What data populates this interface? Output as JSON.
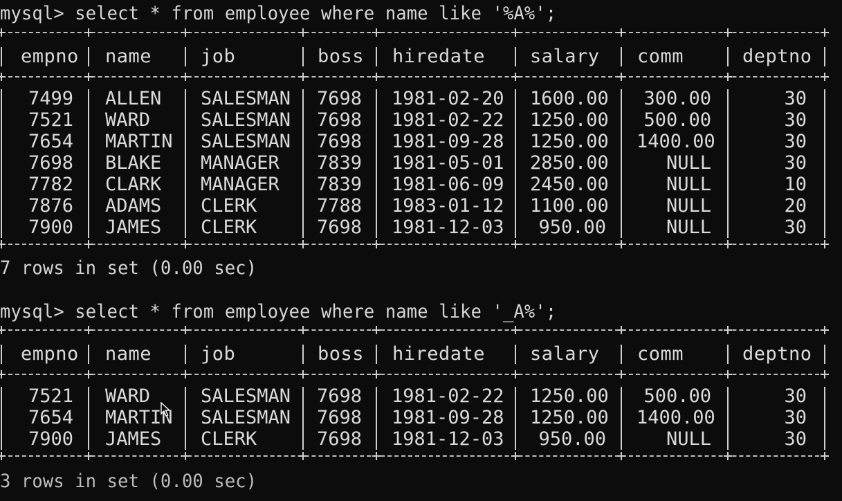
{
  "queries": [
    {
      "prompt": "mysql> select * from employee where name like '%A%';",
      "columns": [
        "empno",
        "name",
        "job",
        "boss",
        "hiredate",
        "salary",
        "comm",
        "deptno"
      ],
      "rows": [
        [
          "7499",
          "ALLEN",
          "SALESMAN",
          "7698",
          "1981-02-20",
          "1600.00",
          "300.00",
          "30"
        ],
        [
          "7521",
          "WARD",
          "SALESMAN",
          "7698",
          "1981-02-22",
          "1250.00",
          "500.00",
          "30"
        ],
        [
          "7654",
          "MARTIN",
          "SALESMAN",
          "7698",
          "1981-09-28",
          "1250.00",
          "1400.00",
          "30"
        ],
        [
          "7698",
          "BLAKE",
          "MANAGER",
          "7839",
          "1981-05-01",
          "2850.00",
          "NULL",
          "30"
        ],
        [
          "7782",
          "CLARK",
          "MANAGER",
          "7839",
          "1981-06-09",
          "2450.00",
          "NULL",
          "10"
        ],
        [
          "7876",
          "ADAMS",
          "CLERK",
          "7788",
          "1983-01-12",
          "1100.00",
          "NULL",
          "20"
        ],
        [
          "7900",
          "JAMES",
          "CLERK",
          "7698",
          "1981-12-03",
          "950.00",
          "NULL",
          "30"
        ]
      ],
      "summary": "7 rows in set (0.00 sec)"
    },
    {
      "prompt": "mysql> select * from employee where name like '_A%';",
      "columns": [
        "empno",
        "name",
        "job",
        "boss",
        "hiredate",
        "salary",
        "comm",
        "deptno"
      ],
      "rows": [
        [
          "7521",
          "WARD",
          "SALESMAN",
          "7698",
          "1981-02-22",
          "1250.00",
          "500.00",
          "30"
        ],
        [
          "7654",
          "MARTIN",
          "SALESMAN",
          "7698",
          "1981-09-28",
          "1250.00",
          "1400.00",
          "30"
        ],
        [
          "7900",
          "JAMES",
          "CLERK",
          "7698",
          "1981-12-03",
          "950.00",
          "NULL",
          "30"
        ]
      ],
      "summary": "3 rows in set (0.00 sec)"
    }
  ],
  "cursor_icon": "mouse-pointer-icon",
  "colors": {
    "background": "#0c0c0c",
    "text": "#d6d6d6"
  }
}
